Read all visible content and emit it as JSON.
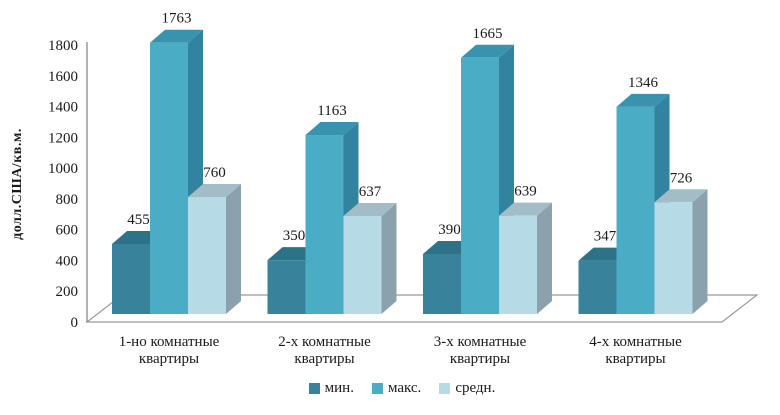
{
  "chart_data": {
    "type": "bar",
    "projection": "3d",
    "title": "",
    "xlabel": "",
    "ylabel": "долл.США/кв.м.",
    "categories": [
      "1-но комнатные\nквартиры",
      "2-х комнатные\nквартиры",
      "3-х комнатные\nквартиры",
      "4-х комнатные\nквартиры"
    ],
    "series": [
      {
        "name": "мин.",
        "values": [
          455,
          350,
          390,
          347
        ],
        "colors": {
          "front": "#38839B",
          "top": "#2D7289",
          "side": "#266478"
        }
      },
      {
        "name": "макс.",
        "values": [
          1763,
          1163,
          1665,
          1346
        ],
        "colors": {
          "front": "#4BACC6",
          "top": "#3A93AE",
          "side": "#3183A0"
        }
      },
      {
        "name": "средн.",
        "values": [
          760,
          637,
          639,
          726
        ],
        "colors": {
          "front": "#B7DBE6",
          "top": "#A3BDC8",
          "side": "#8BA2AE"
        }
      }
    ],
    "ylim": [
      0,
      1800
    ],
    "ytick_step": 200,
    "grid": false,
    "legend_position": "bottom",
    "axis_color": "#808080",
    "floor_color": "#9B9B9B",
    "text_color": "#1A1A1A"
  }
}
